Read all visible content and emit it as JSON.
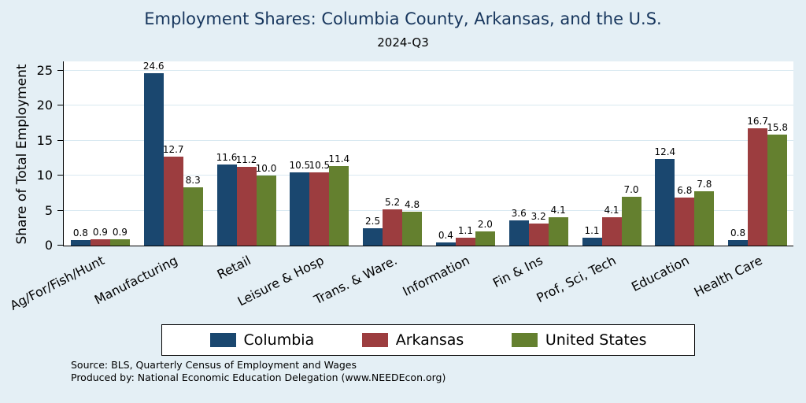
{
  "title": "Employment Shares: Columbia County, Arkansas, and the U.S.",
  "subtitle": "2024-Q3",
  "source_line1": "Source: BLS, Quarterly Census of Employment and Wages",
  "source_line2": "Produced by: National Economic Education Delegation (www.NEEDEcon.org)",
  "colors": {
    "background": "#e4eff5",
    "plot_background": "#ffffff",
    "title_text": "#17365d",
    "gridline": "#d9e9f1"
  },
  "chart_data": {
    "type": "bar",
    "title": "Employment Shares: Columbia County, Arkansas, and the U.S.",
    "subtitle": "2024-Q3",
    "xlabel": "",
    "ylabel": "Share of Total Employment",
    "ylim": [
      0,
      25
    ],
    "yticks": [
      0,
      5,
      10,
      15,
      20,
      25
    ],
    "grid": true,
    "legend_position": "bottom",
    "categories": [
      "Ag/For/Fish/Hunt",
      "Manufacturing",
      "Retail",
      "Leisure & Hosp",
      "Trans. & Ware.",
      "Information",
      "Fin & Ins",
      "Prof, Sci, Tech",
      "Education",
      "Health Care"
    ],
    "series": [
      {
        "name": "Columbia",
        "color": "#1a476f",
        "values": [
          0.8,
          24.6,
          11.6,
          10.5,
          2.5,
          0.4,
          3.6,
          1.1,
          12.4,
          0.8
        ]
      },
      {
        "name": "Arkansas",
        "color": "#9c3d3f",
        "values": [
          0.9,
          12.7,
          11.2,
          10.5,
          5.2,
          1.1,
          3.2,
          4.1,
          6.8,
          16.7
        ]
      },
      {
        "name": "United States",
        "color": "#64802f",
        "values": [
          0.9,
          8.3,
          10.0,
          11.4,
          4.8,
          2.0,
          4.1,
          7.0,
          7.8,
          15.8
        ]
      }
    ]
  }
}
